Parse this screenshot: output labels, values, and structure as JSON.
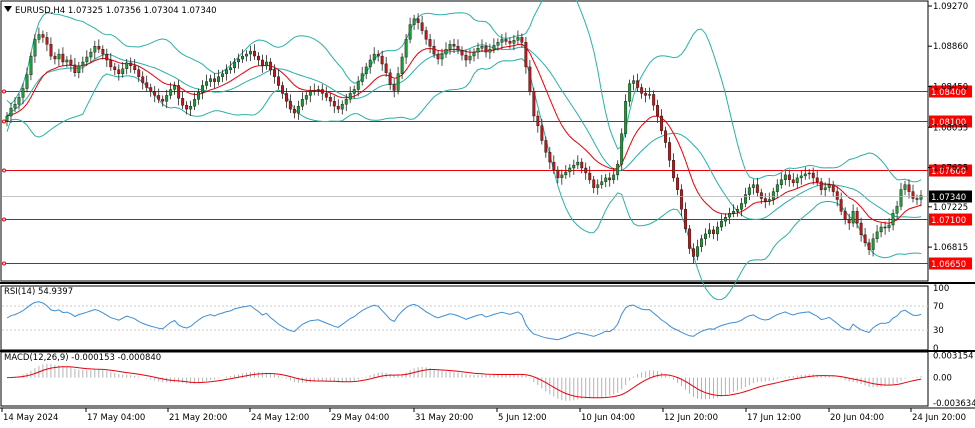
{
  "chart_data": [
    {
      "type": "candlestick",
      "symbol_line": "EURUSD,H4  1.07325 1.07356 1.07304 1.07340",
      "ylim": [
        1.0647,
        1.0929
      ],
      "right_axis_ticks": [
        "1.09270",
        "1.08860",
        "1.08450",
        "1.08035",
        "1.07625",
        "1.07225",
        "1.06815"
      ],
      "price_levels": [
        "1.08400",
        "1.08100",
        "1.07600",
        "1.07100",
        "1.06650"
      ],
      "current_price": "1.07340",
      "x_labels": [
        "14 May 2024",
        "17 May 04:00",
        "21 May 20:00",
        "24 May 12:00",
        "29 May 04:00",
        "31 May 20:00",
        "5 Jun 12:00",
        "10 Jun 04:00",
        "12 Jun 20:00",
        "17 Jun 12:00",
        "20 Jun 04:00",
        "24 Jun 20:00"
      ],
      "close": [
        1.0815,
        1.0823,
        1.0827,
        1.0834,
        1.0843,
        1.0857,
        1.0876,
        1.0893,
        1.0898,
        1.0895,
        1.0888,
        1.0876,
        1.0873,
        1.0878,
        1.087,
        1.0872,
        1.0867,
        1.0859,
        1.0866,
        1.087,
        1.0875,
        1.088,
        1.0886,
        1.0883,
        1.0878,
        1.0872,
        1.0865,
        1.0862,
        1.0858,
        1.0863,
        1.0869,
        1.0866,
        1.0862,
        1.0855,
        1.0849,
        1.0844,
        1.084,
        1.0836,
        1.0832,
        1.083,
        1.0836,
        1.0842,
        1.0846,
        1.0833,
        1.0826,
        1.0822,
        1.0825,
        1.0832,
        1.0839,
        1.0846,
        1.085,
        1.0853,
        1.085,
        1.0855,
        1.0858,
        1.0862,
        1.0864,
        1.087,
        1.0873,
        1.0876,
        1.0878,
        1.0881,
        1.0876,
        1.0872,
        1.0866,
        1.087,
        1.0862,
        1.0855,
        1.0846,
        1.0838,
        1.083,
        1.0822,
        1.0818,
        1.0825,
        1.0832,
        1.0836,
        1.084,
        1.0841,
        1.0842,
        1.0838,
        1.0834,
        1.083,
        1.0825,
        1.0822,
        1.0827,
        1.0832,
        1.0838,
        1.0842,
        1.085,
        1.0858,
        1.0865,
        1.0872,
        1.0878,
        1.0876,
        1.0868,
        1.0859,
        1.0847,
        1.0841,
        1.0858,
        1.0875,
        1.0893,
        1.0908,
        1.0914,
        1.091,
        1.0902,
        1.0893,
        1.0886,
        1.0878,
        1.0873,
        1.0878,
        1.0883,
        1.0888,
        1.0886,
        1.0882,
        1.0877,
        1.0872,
        1.0876,
        1.088,
        1.0884,
        1.0886,
        1.088,
        1.0883,
        1.0887,
        1.089,
        1.0893,
        1.0891,
        1.0889,
        1.0892,
        1.0895,
        1.089,
        1.0865,
        1.084,
        1.0815,
        1.0805,
        1.079,
        1.0778,
        1.0768,
        1.076,
        1.0752,
        1.0755,
        1.0758,
        1.0762,
        1.0765,
        1.0768,
        1.0762,
        1.0757,
        1.075,
        1.0742,
        1.0745,
        1.0748,
        1.0752,
        1.075,
        1.0755,
        1.0766,
        1.0797,
        1.083,
        1.0848,
        1.0851,
        1.0844,
        1.0838,
        1.0836,
        1.0837,
        1.0826,
        1.0815,
        1.08,
        1.0788,
        1.077,
        1.0752,
        1.074,
        1.072,
        1.07,
        1.068,
        1.0672,
        1.0682,
        1.069,
        1.0695,
        1.0699,
        1.0695,
        1.0702,
        1.0708,
        1.0712,
        1.0716,
        1.0718,
        1.072,
        1.0726,
        1.0735,
        1.0742,
        1.0745,
        1.0737,
        1.0731,
        1.0728,
        1.073,
        1.0738,
        1.0745,
        1.075,
        1.0755,
        1.075,
        1.0747,
        1.0752,
        1.0754,
        1.0756,
        1.0757,
        1.0752,
        1.0748,
        1.074,
        1.0742,
        1.0745,
        1.0738,
        1.073,
        1.0718,
        1.071,
        1.0706,
        1.0718,
        1.0706,
        1.0694,
        1.0686,
        1.0679,
        1.069,
        1.0697,
        1.0702,
        1.0701,
        1.0704,
        1.0716,
        1.0723,
        1.074,
        1.0745,
        1.0738,
        1.0731,
        1.073,
        1.0734
      ],
      "series": [
        {
          "name": "RSI(14) 54.9397",
          "panel": "rsi",
          "ylim": [
            0,
            100
          ],
          "ticks": [
            "100",
            "70",
            "30",
            "0"
          ]
        },
        {
          "name": "MACD(12,26,9) -0.000153 -0.000840",
          "panel": "macd",
          "ylim": [
            -0.0041,
            0.0034
          ],
          "ticks": [
            "0.003154",
            "0.00",
            "-0.003634"
          ]
        }
      ],
      "grid": false
    }
  ]
}
